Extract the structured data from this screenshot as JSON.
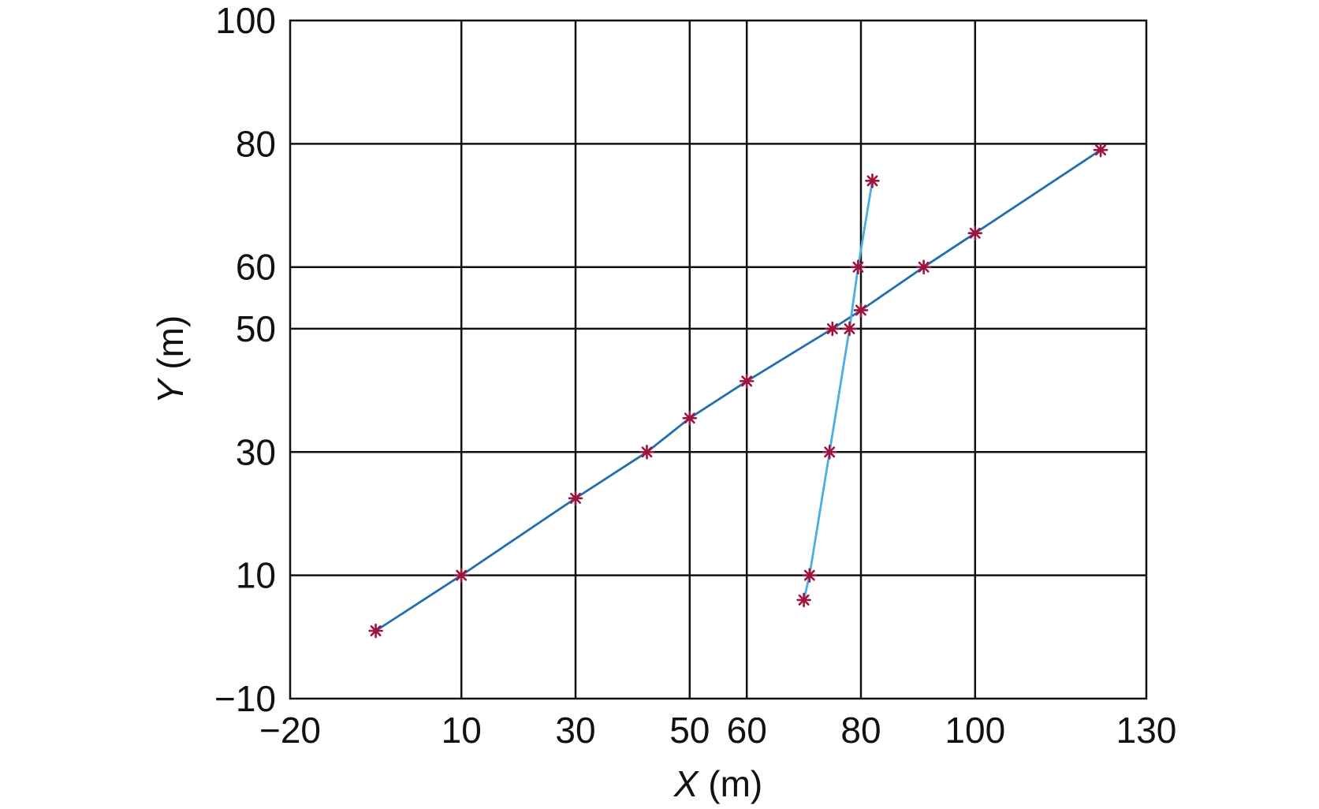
{
  "chart_data": {
    "type": "line",
    "xlabel_var": "X",
    "xlabel_unit": " (m)",
    "ylabel_var": "Y",
    "ylabel_unit": " (m)",
    "xlim": [
      -20,
      130
    ],
    "ylim": [
      -10,
      100
    ],
    "xticks": [
      -20,
      10,
      30,
      50,
      60,
      80,
      100,
      130
    ],
    "xtick_labels": [
      "−20",
      "10",
      "30",
      "50",
      "60",
      "80",
      "100",
      "130"
    ],
    "yticks": [
      -10,
      10,
      30,
      50,
      60,
      80,
      100
    ],
    "ytick_labels": [
      "−10",
      "10",
      "30",
      "50",
      "60",
      "80",
      "100"
    ],
    "grid": true,
    "series": [
      {
        "color": "#1f6fb2",
        "marker_color": "#a0143c",
        "x": [
          -5,
          10,
          30,
          42.5,
          50,
          60,
          75,
          80,
          91,
          100,
          122
        ],
        "y": [
          1,
          10,
          22.5,
          30,
          35.5,
          41.5,
          50,
          53,
          60,
          65.5,
          79
        ]
      },
      {
        "color": "#4aaee0",
        "marker_color": "#a0143c",
        "x": [
          70,
          71,
          74.5,
          78,
          79.5,
          82
        ],
        "y": [
          6,
          10,
          30,
          50,
          60,
          74
        ]
      }
    ]
  }
}
